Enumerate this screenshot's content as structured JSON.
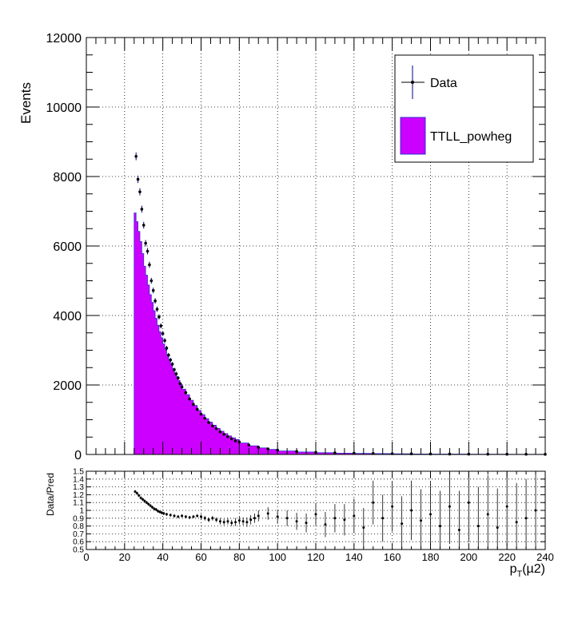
{
  "chart_data": [
    {
      "type": "histogram",
      "ylabel": "Events",
      "xlim": [
        0,
        240
      ],
      "ylim": [
        0,
        12000
      ],
      "grid": true,
      "legend_placement": "top-right",
      "y_ticks": [
        "0",
        "2000",
        "4000",
        "6000",
        "8000",
        "10000",
        "12000"
      ],
      "series": [
        {
          "name": "Data",
          "style": "points-with-errorbars",
          "color": "#000080",
          "x": [
            26,
            27,
            28,
            29,
            30,
            31,
            32,
            33,
            34,
            35,
            36,
            37,
            38,
            39,
            40,
            41,
            42,
            43,
            44,
            45,
            46,
            47,
            48,
            49,
            50,
            52,
            54,
            56,
            58,
            60,
            62,
            64,
            66,
            68,
            70,
            72,
            74,
            76,
            78,
            80,
            85,
            90,
            95,
            100,
            110,
            120,
            130,
            140,
            150,
            160,
            170,
            180,
            190,
            200,
            210,
            220,
            230,
            240
          ],
          "y": [
            8580,
            7920,
            7560,
            7060,
            6600,
            6080,
            5850,
            5460,
            5000,
            4720,
            4420,
            4180,
            3960,
            3700,
            3480,
            3280,
            3060,
            2860,
            2720,
            2600,
            2440,
            2320,
            2200,
            2040,
            1940,
            1780,
            1600,
            1440,
            1300,
            1160,
            1040,
            920,
            820,
            740,
            650,
            580,
            510,
            450,
            390,
            360,
            270,
            205,
            160,
            125,
            85,
            60,
            45,
            35,
            28,
            22,
            18,
            15,
            12,
            10,
            8,
            7,
            6,
            5
          ]
        },
        {
          "name": "TTLL_powheg",
          "style": "filled-histogram",
          "color": "#cc00ff",
          "bin_edges": [
            25,
            26,
            27,
            28,
            29,
            30,
            31,
            32,
            33,
            34,
            35,
            36,
            37,
            38,
            39,
            40,
            41,
            42,
            43,
            44,
            45,
            46,
            47,
            48,
            49,
            50,
            52,
            54,
            56,
            58,
            60,
            62,
            64,
            66,
            68,
            70,
            72,
            74,
            76,
            78,
            80,
            85,
            90,
            95,
            100,
            110,
            120,
            130,
            140,
            150,
            160,
            170,
            180,
            190,
            200,
            210,
            220,
            230,
            240
          ],
          "values": [
            6950,
            6700,
            6420,
            6130,
            5780,
            5420,
            5160,
            4880,
            4600,
            4380,
            4140,
            3920,
            3720,
            3530,
            3360,
            3180,
            3020,
            2870,
            2730,
            2600,
            2470,
            2350,
            2240,
            2130,
            2030,
            1880,
            1720,
            1560,
            1410,
            1270,
            1150,
            1030,
            930,
            840,
            750,
            670,
            600,
            535,
            480,
            430,
            330,
            250,
            190,
            145,
            100,
            70,
            50,
            38,
            30,
            24,
            19,
            15,
            12,
            10,
            8,
            7,
            6,
            5
          ]
        }
      ]
    },
    {
      "type": "scatter",
      "ylabel": "Data/Pred",
      "xlabel_parts": {
        "base": "p",
        "sub": "T",
        "rest": "(µ2)"
      },
      "xlim": [
        0,
        240
      ],
      "ylim": [
        0.5,
        1.5
      ],
      "grid": true,
      "x_ticks": [
        "0",
        "20",
        "40",
        "60",
        "80",
        "100",
        "120",
        "140",
        "160",
        "180",
        "200",
        "220",
        "240"
      ],
      "y_ticks": [
        "0.5",
        "0.6",
        "0.7",
        "0.8",
        "0.9",
        "1",
        "1.1",
        "1.2",
        "1.3",
        "1.4",
        "1.5"
      ],
      "series": [
        {
          "name": "ratio",
          "color": "#000000",
          "x": [
            25.5,
            26.5,
            27.5,
            28.5,
            29.5,
            30.5,
            31.5,
            32.5,
            33.5,
            34.5,
            35.5,
            36.5,
            37.5,
            38.5,
            39.5,
            40.5,
            42,
            44,
            46,
            48,
            50,
            52,
            54,
            56,
            58,
            60,
            62,
            64,
            66,
            68,
            70,
            72,
            74,
            76,
            78,
            80,
            82,
            84,
            86,
            88,
            90,
            95,
            100,
            105,
            110,
            115,
            120,
            125,
            130,
            135,
            140,
            145,
            150,
            155,
            160,
            165,
            170,
            175,
            180,
            185,
            190,
            195,
            200,
            205,
            210,
            215,
            220,
            225,
            230,
            235
          ],
          "y": [
            1.24,
            1.22,
            1.19,
            1.16,
            1.14,
            1.12,
            1.1,
            1.08,
            1.06,
            1.04,
            1.02,
            1.01,
            0.99,
            0.98,
            0.97,
            0.96,
            0.95,
            0.94,
            0.93,
            0.92,
            0.93,
            0.92,
            0.91,
            0.92,
            0.93,
            0.92,
            0.9,
            0.88,
            0.9,
            0.88,
            0.86,
            0.85,
            0.86,
            0.84,
            0.85,
            0.87,
            0.86,
            0.85,
            0.88,
            0.9,
            0.93,
            0.96,
            0.92,
            0.9,
            0.86,
            0.84,
            0.95,
            0.82,
            0.9,
            0.88,
            0.93,
            0.78,
            1.1,
            0.9,
            1.05,
            0.83,
            1.0,
            0.87,
            0.95,
            0.8,
            1.05,
            0.75,
            1.1,
            0.8,
            0.95,
            0.78,
            1.05,
            0.85,
            0.9,
            1.0
          ],
          "err": [
            0.02,
            0.02,
            0.02,
            0.02,
            0.02,
            0.02,
            0.02,
            0.02,
            0.02,
            0.02,
            0.02,
            0.02,
            0.02,
            0.02,
            0.02,
            0.02,
            0.02,
            0.02,
            0.02,
            0.02,
            0.02,
            0.02,
            0.02,
            0.02,
            0.02,
            0.03,
            0.03,
            0.03,
            0.03,
            0.03,
            0.04,
            0.04,
            0.04,
            0.04,
            0.05,
            0.05,
            0.05,
            0.06,
            0.06,
            0.06,
            0.07,
            0.08,
            0.09,
            0.1,
            0.11,
            0.12,
            0.14,
            0.16,
            0.18,
            0.2,
            0.22,
            0.25,
            0.28,
            0.3,
            0.32,
            0.35,
            0.38,
            0.4,
            0.42,
            0.45,
            0.48,
            0.5,
            0.5,
            0.5,
            0.5,
            0.5,
            0.5,
            0.5,
            0.5,
            0.5
          ]
        }
      ]
    }
  ]
}
